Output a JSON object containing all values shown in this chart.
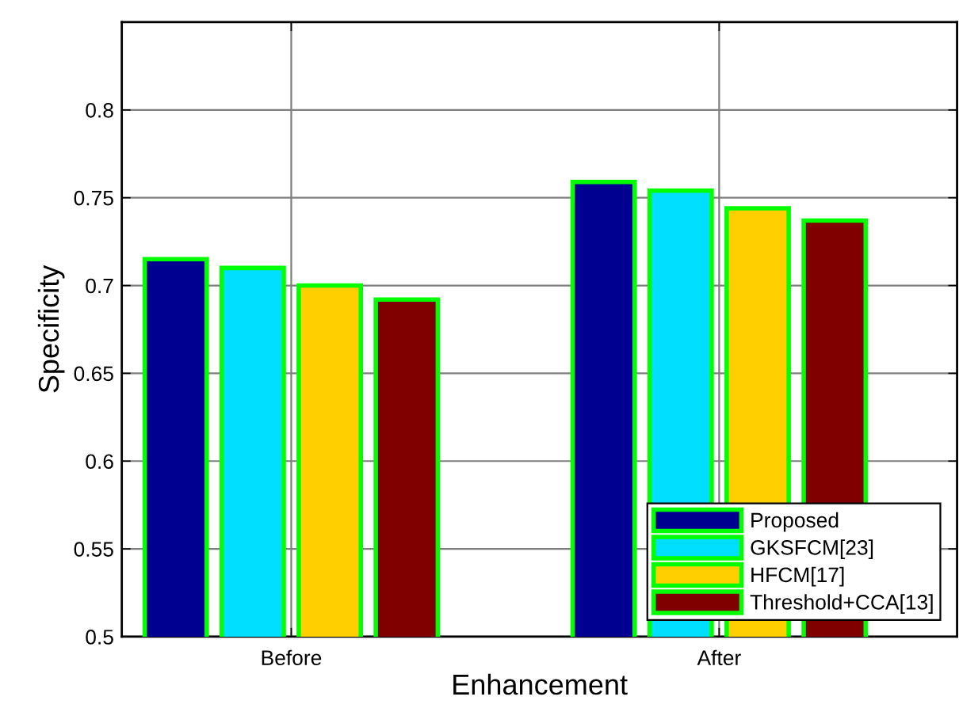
{
  "chart_data": {
    "type": "bar",
    "xlabel": "Enhancement",
    "ylabel": "Specificity",
    "categories": [
      "Before",
      "After"
    ],
    "series": [
      {
        "name": "Proposed",
        "color": "#000090",
        "values": [
          0.715,
          0.759
        ]
      },
      {
        "name": "GKSFCM[23]",
        "color": "#00dfff",
        "values": [
          0.71,
          0.754
        ]
      },
      {
        "name": "HFCM[17]",
        "color": "#ffcf00",
        "values": [
          0.7,
          0.744
        ]
      },
      {
        "name": "Threshold+CCA[13]",
        "color": "#800000",
        "values": [
          0.692,
          0.737
        ]
      }
    ],
    "ylim": [
      0.5,
      0.85
    ],
    "yticks": [
      0.5,
      0.55,
      0.6,
      0.65,
      0.7,
      0.75,
      0.8
    ],
    "grid": true,
    "legend": "bottom right"
  }
}
